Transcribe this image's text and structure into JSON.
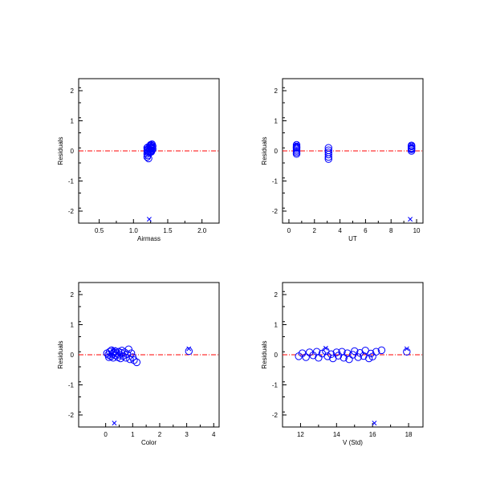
{
  "chart_data": [
    {
      "type": "scatter",
      "xlabel": "Airmass",
      "ylabel": "Residuals",
      "xlim": [
        0.2,
        2.25
      ],
      "ylim": [
        -2.4,
        2.4
      ],
      "xticks": [
        0.5,
        1.0,
        1.5,
        2.0
      ],
      "xtick_labels": [
        "0.5",
        "1.0",
        "1.5",
        "2.0"
      ],
      "yticks": [
        -2,
        -1,
        0,
        1,
        2
      ],
      "ytick_labels": [
        "-2",
        "-1",
        "0",
        "1",
        "2"
      ],
      "zero_line": 0,
      "circles": [
        {
          "x": 1.2,
          "y": 0.1
        },
        {
          "x": 1.2,
          "y": 0.0
        },
        {
          "x": 1.2,
          "y": -0.1
        },
        {
          "x": 1.2,
          "y": -0.2
        },
        {
          "x": 1.21,
          "y": 0.05
        },
        {
          "x": 1.21,
          "y": -0.05
        },
        {
          "x": 1.21,
          "y": -0.15
        },
        {
          "x": 1.21,
          "y": 0.12
        },
        {
          "x": 1.22,
          "y": 0.08
        },
        {
          "x": 1.22,
          "y": -0.02
        },
        {
          "x": 1.22,
          "y": -0.25
        },
        {
          "x": 1.24,
          "y": 0.15
        },
        {
          "x": 1.24,
          "y": 0.05
        },
        {
          "x": 1.24,
          "y": -0.05
        },
        {
          "x": 1.25,
          "y": 0.2
        },
        {
          "x": 1.25,
          "y": 0.1
        },
        {
          "x": 1.25,
          "y": 0.0
        },
        {
          "x": 1.26,
          "y": 0.18
        },
        {
          "x": 1.26,
          "y": 0.08
        },
        {
          "x": 1.26,
          "y": -0.03
        },
        {
          "x": 1.27,
          "y": 0.22
        },
        {
          "x": 1.27,
          "y": 0.12
        },
        {
          "x": 1.27,
          "y": 0.02
        },
        {
          "x": 1.28,
          "y": 0.16
        },
        {
          "x": 1.28,
          "y": 0.06
        }
      ],
      "crosses": [
        {
          "x": 1.23,
          "y": -2.27
        },
        {
          "x": 1.22,
          "y": 0.15
        },
        {
          "x": 1.27,
          "y": 0.25
        }
      ]
    },
    {
      "type": "scatter",
      "xlabel": "UT",
      "ylabel": "Residuals",
      "xlim": [
        -0.5,
        10.5
      ],
      "ylim": [
        -2.4,
        2.4
      ],
      "xticks": [
        0,
        2,
        4,
        6,
        8,
        10
      ],
      "xtick_labels": [
        "0",
        "2",
        "4",
        "6",
        "8",
        "10"
      ],
      "yticks": [
        -2,
        -1,
        0,
        1,
        2
      ],
      "ytick_labels": [
        "-2",
        "-1",
        "0",
        "1",
        "2"
      ],
      "zero_line": 0,
      "circles": [
        {
          "x": 0.6,
          "y": 0.2
        },
        {
          "x": 0.6,
          "y": 0.15
        },
        {
          "x": 0.6,
          "y": 0.1
        },
        {
          "x": 0.6,
          "y": 0.05
        },
        {
          "x": 0.6,
          "y": 0.0
        },
        {
          "x": 0.6,
          "y": -0.05
        },
        {
          "x": 0.6,
          "y": -0.1
        },
        {
          "x": 0.6,
          "y": 0.12
        },
        {
          "x": 3.1,
          "y": 0.1
        },
        {
          "x": 3.1,
          "y": 0.02
        },
        {
          "x": 3.1,
          "y": -0.05
        },
        {
          "x": 3.1,
          "y": -0.12
        },
        {
          "x": 3.1,
          "y": -0.2
        },
        {
          "x": 3.1,
          "y": -0.27
        },
        {
          "x": 9.6,
          "y": 0.15
        },
        {
          "x": 9.6,
          "y": 0.1
        },
        {
          "x": 9.6,
          "y": 0.05
        },
        {
          "x": 9.6,
          "y": 0.0
        },
        {
          "x": 9.6,
          "y": 0.18
        },
        {
          "x": 9.6,
          "y": 0.08
        }
      ],
      "crosses": [
        {
          "x": 9.5,
          "y": -2.27
        },
        {
          "x": 0.6,
          "y": 0.22
        },
        {
          "x": 9.6,
          "y": 0.2
        }
      ]
    },
    {
      "type": "scatter",
      "xlabel": "Color",
      "ylabel": "Residuals",
      "xlim": [
        -1.0,
        4.2
      ],
      "ylim": [
        -2.4,
        2.4
      ],
      "xticks": [
        0,
        1,
        2,
        3,
        4
      ],
      "xtick_labels": [
        "0",
        "1",
        "2",
        "3",
        "4"
      ],
      "yticks": [
        -2,
        -1,
        0,
        1,
        2
      ],
      "ytick_labels": [
        "-2",
        "-1",
        "0",
        "1",
        "2"
      ],
      "zero_line": 0,
      "circles": [
        {
          "x": 0.05,
          "y": 0.05
        },
        {
          "x": 0.1,
          "y": 0.0
        },
        {
          "x": 0.15,
          "y": 0.1
        },
        {
          "x": 0.2,
          "y": -0.05
        },
        {
          "x": 0.22,
          "y": 0.15
        },
        {
          "x": 0.25,
          "y": 0.02
        },
        {
          "x": 0.28,
          "y": -0.1
        },
        {
          "x": 0.3,
          "y": 0.08
        },
        {
          "x": 0.35,
          "y": 0.12
        },
        {
          "x": 0.38,
          "y": -0.02
        },
        {
          "x": 0.4,
          "y": 0.05
        },
        {
          "x": 0.45,
          "y": -0.08
        },
        {
          "x": 0.48,
          "y": 0.1
        },
        {
          "x": 0.5,
          "y": 0.0
        },
        {
          "x": 0.55,
          "y": -0.12
        },
        {
          "x": 0.58,
          "y": 0.06
        },
        {
          "x": 0.6,
          "y": 0.14
        },
        {
          "x": 0.65,
          "y": -0.04
        },
        {
          "x": 0.7,
          "y": 0.08
        },
        {
          "x": 0.75,
          "y": -0.1
        },
        {
          "x": 0.8,
          "y": 0.02
        },
        {
          "x": 0.85,
          "y": 0.18
        },
        {
          "x": 0.9,
          "y": -0.15
        },
        {
          "x": 0.95,
          "y": 0.05
        },
        {
          "x": 1.0,
          "y": -0.08
        },
        {
          "x": 1.05,
          "y": -0.18
        },
        {
          "x": 1.15,
          "y": -0.25
        },
        {
          "x": 0.12,
          "y": -0.08
        },
        {
          "x": 3.08,
          "y": 0.12
        }
      ],
      "crosses": [
        {
          "x": 0.32,
          "y": -2.27
        },
        {
          "x": 3.08,
          "y": 0.2
        },
        {
          "x": 0.3,
          "y": 0.18
        }
      ]
    },
    {
      "type": "scatter",
      "xlabel": "V (Std)",
      "ylabel": "Residuals",
      "xlim": [
        11.0,
        18.8
      ],
      "ylim": [
        -2.4,
        2.4
      ],
      "xticks": [
        12,
        14,
        16,
        18
      ],
      "xtick_labels": [
        "12",
        "14",
        "16",
        "18"
      ],
      "yticks": [
        -2,
        -1,
        0,
        1,
        2
      ],
      "ytick_labels": [
        "-2",
        "-1",
        "0",
        "1",
        "2"
      ],
      "zero_line": 0,
      "circles": [
        {
          "x": 11.9,
          "y": -0.05
        },
        {
          "x": 12.1,
          "y": 0.05
        },
        {
          "x": 12.3,
          "y": -0.08
        },
        {
          "x": 12.5,
          "y": 0.08
        },
        {
          "x": 12.7,
          "y": -0.02
        },
        {
          "x": 12.9,
          "y": 0.1
        },
        {
          "x": 13.0,
          "y": -0.1
        },
        {
          "x": 13.2,
          "y": 0.04
        },
        {
          "x": 13.4,
          "y": 0.12
        },
        {
          "x": 13.5,
          "y": -0.05
        },
        {
          "x": 13.7,
          "y": 0.02
        },
        {
          "x": 13.8,
          "y": -0.12
        },
        {
          "x": 14.0,
          "y": 0.08
        },
        {
          "x": 14.1,
          "y": -0.03
        },
        {
          "x": 14.3,
          "y": 0.1
        },
        {
          "x": 14.4,
          "y": -0.1
        },
        {
          "x": 14.6,
          "y": 0.05
        },
        {
          "x": 14.7,
          "y": -0.15
        },
        {
          "x": 14.9,
          "y": 0.0
        },
        {
          "x": 15.0,
          "y": 0.12
        },
        {
          "x": 15.2,
          "y": -0.08
        },
        {
          "x": 15.3,
          "y": 0.06
        },
        {
          "x": 15.5,
          "y": -0.04
        },
        {
          "x": 15.6,
          "y": 0.14
        },
        {
          "x": 15.8,
          "y": -0.12
        },
        {
          "x": 15.9,
          "y": 0.04
        },
        {
          "x": 16.0,
          "y": -0.06
        },
        {
          "x": 16.2,
          "y": 0.1
        },
        {
          "x": 16.5,
          "y": 0.15
        },
        {
          "x": 17.9,
          "y": 0.1
        }
      ],
      "crosses": [
        {
          "x": 16.1,
          "y": -2.27
        },
        {
          "x": 17.9,
          "y": 0.2
        },
        {
          "x": 13.4,
          "y": 0.22
        }
      ]
    }
  ]
}
